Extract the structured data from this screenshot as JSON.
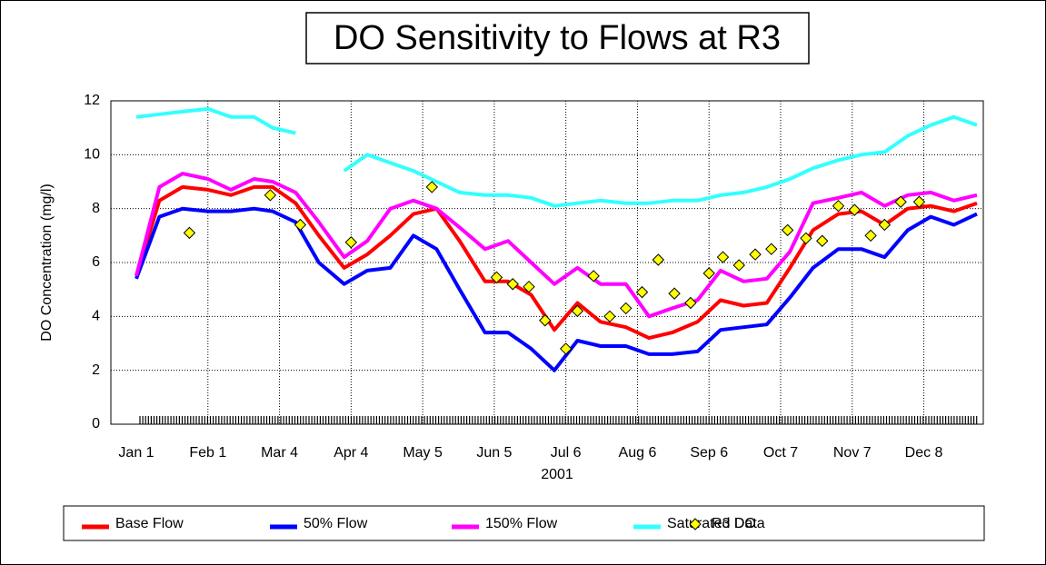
{
  "chart_data": {
    "type": "line",
    "title": "DO Sensitivity to Flows at R3",
    "xlabel": "2001",
    "ylabel": "DO Concentration (mg/l)",
    "x": [
      "2001-01-01",
      "2001-01-11",
      "2001-01-21",
      "2001-02-01",
      "2001-02-11",
      "2001-02-21",
      "2001-03-01",
      "2001-03-11",
      "2001-03-21",
      "2001-04-01",
      "2001-04-11",
      "2001-04-21",
      "2001-05-01",
      "2001-05-11",
      "2001-05-21",
      "2001-06-01",
      "2001-06-11",
      "2001-06-21",
      "2001-07-01",
      "2001-07-11",
      "2001-07-21",
      "2001-08-01",
      "2001-08-11",
      "2001-08-21",
      "2001-09-01",
      "2001-09-11",
      "2001-09-21",
      "2001-10-01",
      "2001-10-11",
      "2001-10-21",
      "2001-11-01",
      "2001-11-11",
      "2001-11-21",
      "2001-12-01",
      "2001-12-11",
      "2001-12-21",
      "2001-12-31"
    ],
    "series": [
      {
        "name": "Base Flow",
        "color": "#ff0000",
        "values": [
          5.5,
          8.3,
          8.8,
          8.7,
          8.5,
          8.8,
          8.8,
          8.2,
          7.0,
          5.8,
          6.3,
          7.0,
          7.8,
          8.0,
          6.8,
          5.3,
          5.3,
          4.8,
          3.5,
          4.5,
          3.8,
          3.6,
          3.2,
          3.4,
          3.8,
          4.6,
          4.4,
          4.5,
          5.8,
          7.2,
          7.8,
          7.9,
          7.4,
          8.0,
          8.1,
          7.9,
          8.2
        ]
      },
      {
        "name": "50% Flow",
        "color": "#0000ff",
        "values": [
          5.4,
          7.7,
          8.0,
          7.9,
          7.9,
          8.0,
          7.9,
          7.5,
          6.0,
          5.2,
          5.7,
          5.8,
          7.0,
          6.5,
          5.0,
          3.4,
          3.4,
          2.8,
          2.0,
          3.1,
          2.9,
          2.9,
          2.6,
          2.6,
          2.7,
          3.5,
          3.6,
          3.7,
          4.7,
          5.8,
          6.5,
          6.5,
          6.2,
          7.2,
          7.7,
          7.4,
          7.8
        ]
      },
      {
        "name": "150% Flow",
        "color": "#ff00ff",
        "values": [
          5.5,
          8.8,
          9.3,
          9.1,
          8.7,
          9.1,
          9.0,
          8.6,
          7.5,
          6.2,
          6.8,
          8.0,
          8.3,
          8.0,
          7.3,
          6.5,
          6.8,
          6.0,
          5.2,
          5.8,
          5.2,
          5.2,
          4.0,
          4.3,
          4.6,
          5.7,
          5.3,
          5.4,
          6.4,
          8.2,
          8.4,
          8.6,
          8.1,
          8.5,
          8.6,
          8.3,
          8.5
        ]
      },
      {
        "name": "Saturated DO",
        "color": "#33ffff",
        "values": [
          11.4,
          11.5,
          11.6,
          11.7,
          11.4,
          11.4,
          11.0,
          10.8,
          null,
          9.4,
          10.0,
          9.7,
          9.4,
          9.0,
          8.6,
          8.5,
          8.5,
          8.4,
          8.1,
          8.2,
          8.3,
          8.2,
          8.2,
          8.3,
          8.3,
          8.5,
          8.6,
          8.8,
          9.1,
          9.5,
          9.8,
          10.0,
          10.1,
          10.7,
          11.1,
          11.4,
          11.1
        ]
      },
      {
        "name": "R3 Data",
        "type": "scatter",
        "color": "#ffff00",
        "x": [
          "2001-01-24",
          "2001-02-28",
          "2001-03-13",
          "2001-04-04",
          "2001-05-09",
          "2001-06-06",
          "2001-06-13",
          "2001-06-20",
          "2001-06-27",
          "2001-07-06",
          "2001-07-11",
          "2001-07-18",
          "2001-07-25",
          "2001-08-01",
          "2001-08-08",
          "2001-08-15",
          "2001-08-22",
          "2001-08-29",
          "2001-09-06",
          "2001-09-12",
          "2001-09-19",
          "2001-09-26",
          "2001-10-03",
          "2001-10-10",
          "2001-10-18",
          "2001-10-25",
          "2001-11-01",
          "2001-11-08",
          "2001-11-15",
          "2001-11-21",
          "2001-11-28",
          "2001-12-06"
        ],
        "values": [
          7.1,
          8.5,
          7.4,
          6.75,
          8.8,
          5.45,
          5.2,
          5.1,
          3.85,
          2.8,
          4.2,
          5.5,
          4.0,
          4.3,
          4.9,
          6.1,
          4.85,
          4.5,
          5.6,
          6.2,
          5.9,
          6.3,
          6.5,
          7.2,
          6.9,
          6.8,
          8.1,
          7.95,
          7.0,
          7.4,
          8.25,
          8.25
        ]
      }
    ],
    "xlim": [
      "2001-01-01",
      "2001-12-31"
    ],
    "xticks": [
      {
        "value": "2001-01-01",
        "label": "Jan 1"
      },
      {
        "value": "2001-02-01",
        "label": "Feb 1"
      },
      {
        "value": "2001-03-04",
        "label": "Mar 4"
      },
      {
        "value": "2001-04-04",
        "label": "Apr 4"
      },
      {
        "value": "2001-05-05",
        "label": "May 5"
      },
      {
        "value": "2001-06-05",
        "label": "Jun 5"
      },
      {
        "value": "2001-07-06",
        "label": "Jul 6"
      },
      {
        "value": "2001-08-06",
        "label": "Aug 6"
      },
      {
        "value": "2001-09-06",
        "label": "Sep 6"
      },
      {
        "value": "2001-10-07",
        "label": "Oct 7"
      },
      {
        "value": "2001-11-07",
        "label": "Nov 7"
      },
      {
        "value": "2001-12-08",
        "label": "Dec 8"
      }
    ],
    "ylim": [
      0,
      12
    ],
    "yticks": [
      0,
      2,
      4,
      6,
      8,
      10,
      12
    ],
    "grid": true
  }
}
